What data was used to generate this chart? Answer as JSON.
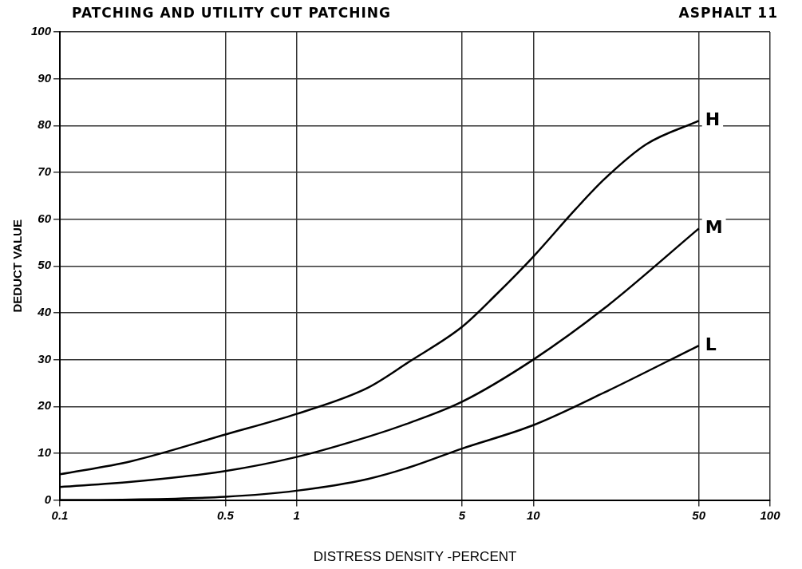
{
  "chart_data": {
    "type": "line",
    "title": "PATCHING AND UTILITY CUT PATCHING",
    "subtitle": "ASPHALT 11",
    "xlabel": "DISTRESS DENSITY -PERCENT",
    "ylabel": "DEDUCT VALUE",
    "log": "x",
    "xlim": [
      0.1,
      100
    ],
    "xticks": [
      0.1,
      0.5,
      1,
      5,
      10,
      50,
      100
    ],
    "ylim": [
      0,
      100
    ],
    "yticks": [
      0,
      10,
      20,
      30,
      40,
      50,
      60,
      70,
      80,
      90,
      100
    ],
    "grid": true,
    "legend": false,
    "marker": "none",
    "line_style": "solid",
    "series": [
      {
        "name": "H",
        "color": "#000000",
        "x": [
          0.1,
          0.2,
          0.5,
          1,
          2,
          3,
          5,
          7,
          10,
          15,
          20,
          30,
          50
        ],
        "values": [
          5.5,
          8.3,
          14,
          18.4,
          24,
          29.6,
          37,
          44,
          52,
          62,
          68.6,
          76,
          81
        ]
      },
      {
        "name": "M",
        "color": "#000000",
        "x": [
          0.1,
          0.2,
          0.5,
          1,
          2,
          3,
          5,
          10,
          20,
          50
        ],
        "values": [
          2.8,
          3.9,
          6.2,
          9.2,
          13.5,
          16.5,
          21,
          30,
          41,
          58
        ]
      },
      {
        "name": "L",
        "color": "#000000",
        "x": [
          0.1,
          0.2,
          0.5,
          1,
          2,
          3,
          5,
          10,
          20,
          50
        ],
        "values": [
          0,
          0.1,
          0.7,
          2,
          4.5,
          7,
          11,
          16,
          23,
          33
        ]
      }
    ]
  }
}
